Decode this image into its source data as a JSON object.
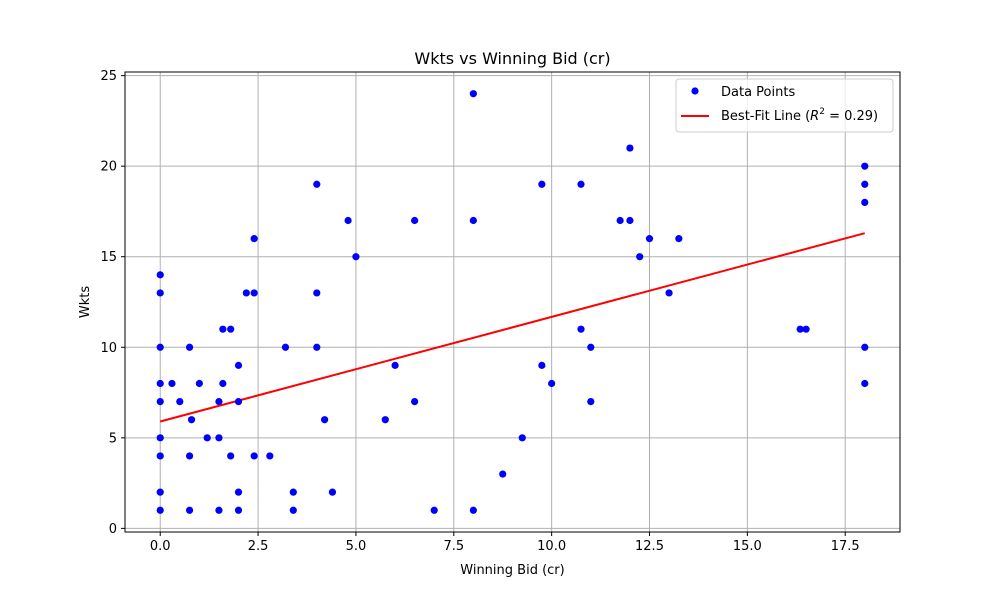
{
  "chart_data": {
    "type": "scatter",
    "title": "Wkts vs Winning Bid (cr)",
    "xlabel": "Winning Bid (cr)",
    "ylabel": "Wkts",
    "xlim": [
      -0.9,
      18.9
    ],
    "ylim": [
      -0.2,
      25.2
    ],
    "x_ticks": [
      0.0,
      2.5,
      5.0,
      7.5,
      10.0,
      12.5,
      15.0,
      17.5
    ],
    "x_tick_labels": [
      "0.0",
      "2.5",
      "5.0",
      "7.5",
      "10.0",
      "12.5",
      "15.0",
      "17.5"
    ],
    "y_ticks": [
      0,
      5,
      10,
      15,
      20,
      25
    ],
    "y_tick_labels": [
      "0",
      "5",
      "10",
      "15",
      "20",
      "25"
    ],
    "grid": true,
    "legend_position": "top-right",
    "colors": {
      "points": "#0000ff",
      "fit_line": "#ff0000",
      "grid": "#b0b0b0"
    },
    "series": [
      {
        "name": "Data Points",
        "kind": "scatter",
        "points": [
          [
            0,
            14
          ],
          [
            0,
            13
          ],
          [
            0,
            10
          ],
          [
            0,
            8
          ],
          [
            0,
            7
          ],
          [
            0,
            5
          ],
          [
            0,
            4
          ],
          [
            0,
            2
          ],
          [
            0,
            1
          ],
          [
            0.3,
            8
          ],
          [
            0.5,
            7
          ],
          [
            0.75,
            10
          ],
          [
            0.8,
            6
          ],
          [
            0.75,
            4
          ],
          [
            0.75,
            1
          ],
          [
            1.0,
            8
          ],
          [
            1.2,
            5
          ],
          [
            1.5,
            7
          ],
          [
            1.5,
            5
          ],
          [
            1.5,
            1
          ],
          [
            1.6,
            11
          ],
          [
            1.6,
            8
          ],
          [
            1.8,
            11
          ],
          [
            1.8,
            4
          ],
          [
            2.0,
            9
          ],
          [
            2.0,
            7
          ],
          [
            2.0,
            2
          ],
          [
            2.0,
            1
          ],
          [
            2.2,
            13
          ],
          [
            2.4,
            16
          ],
          [
            2.4,
            13
          ],
          [
            2.4,
            4
          ],
          [
            2.8,
            4
          ],
          [
            3.2,
            10
          ],
          [
            3.4,
            2
          ],
          [
            3.4,
            1
          ],
          [
            4.0,
            19
          ],
          [
            4.0,
            13
          ],
          [
            4.0,
            10
          ],
          [
            4.2,
            6
          ],
          [
            4.4,
            2
          ],
          [
            4.8,
            17
          ],
          [
            5.0,
            15
          ],
          [
            5.75,
            6
          ],
          [
            6.0,
            9
          ],
          [
            6.5,
            17
          ],
          [
            6.5,
            7
          ],
          [
            7.0,
            1
          ],
          [
            8.0,
            24
          ],
          [
            8.0,
            17
          ],
          [
            8.0,
            1
          ],
          [
            8.75,
            3
          ],
          [
            9.25,
            5
          ],
          [
            9.75,
            19
          ],
          [
            9.75,
            9
          ],
          [
            10.0,
            8
          ],
          [
            10.75,
            19
          ],
          [
            10.75,
            11
          ],
          [
            11.0,
            10
          ],
          [
            11.0,
            7
          ],
          [
            11.75,
            17
          ],
          [
            12.0,
            21
          ],
          [
            12.0,
            17
          ],
          [
            12.25,
            15
          ],
          [
            12.5,
            16
          ],
          [
            13.0,
            13
          ],
          [
            13.25,
            16
          ],
          [
            16.35,
            11
          ],
          [
            16.5,
            11
          ],
          [
            18.0,
            20
          ],
          [
            18.0,
            19
          ],
          [
            18.0,
            18
          ],
          [
            18.0,
            10
          ],
          [
            18.0,
            8
          ]
        ]
      },
      {
        "name": "Best-Fit Line (R² = 0.29)",
        "legend_prefix": "Best-Fit Line (",
        "legend_math_r": "R",
        "legend_math_sup": "2",
        "legend_math_rest": " = 0.29)",
        "kind": "line",
        "r_squared": 0.29,
        "x": [
          0,
          18.0
        ],
        "y": [
          5.9,
          16.3
        ]
      }
    ]
  }
}
